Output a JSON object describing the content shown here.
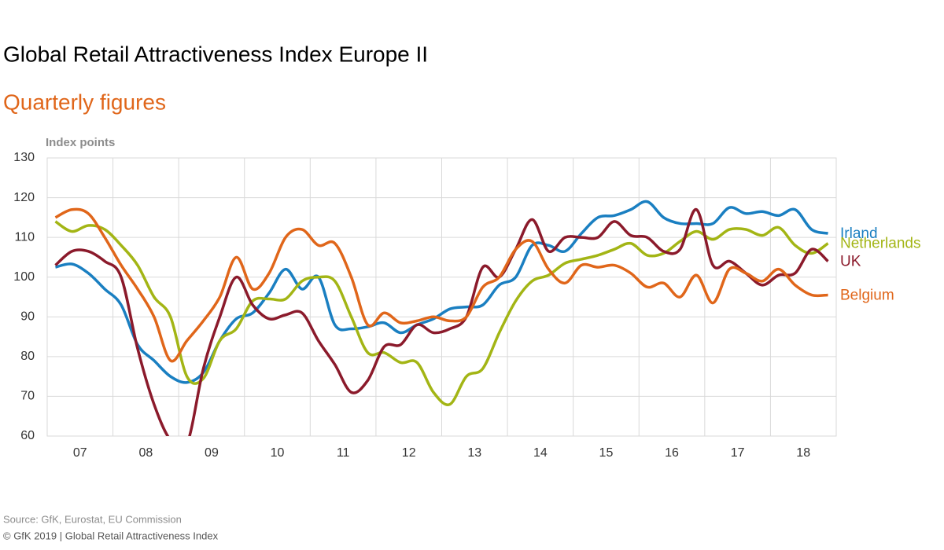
{
  "chart_data": {
    "type": "line",
    "title": "Global Retail Attractiveness Index Europe II",
    "subtitle": "Quarterly figures",
    "y_label": "Index points",
    "source": "Source: GfK, Eurostat, EU Commission",
    "copyright": "© GfK 2019 | Global Retail Attractiveness Index",
    "categories": [
      null,
      "07",
      null,
      null,
      null,
      "08",
      null,
      null,
      null,
      "09",
      null,
      null,
      null,
      "10",
      null,
      null,
      null,
      "11",
      null,
      null,
      null,
      "12",
      null,
      null,
      null,
      "13",
      null,
      null,
      null,
      "14",
      null,
      null,
      null,
      "15",
      null,
      null,
      null,
      "16",
      null,
      null,
      null,
      "17",
      null,
      null,
      null,
      "18",
      null,
      null
    ],
    "ylim": [
      60,
      130
    ],
    "yticks": [
      60,
      70,
      80,
      90,
      100,
      110,
      120,
      130
    ],
    "grid": true,
    "series": [
      {
        "name": "Irland",
        "color": "#1a7fc1",
        "values": [
          102.5,
          103.3,
          101,
          97,
          93,
          83,
          79,
          75,
          73.5,
          76,
          84,
          89.5,
          91,
          96,
          102,
          97,
          100,
          88,
          87,
          87.5,
          88.5,
          86,
          88,
          89.5,
          92,
          92.5,
          93,
          98,
          100,
          108,
          108,
          106.5,
          111,
          115,
          115.5,
          117,
          119,
          115,
          113.5,
          113.5,
          113.5,
          117.5,
          116,
          116.5,
          115.5,
          117,
          112,
          111
        ]
      },
      {
        "name": "Netherlands",
        "color": "#a3b515",
        "values": [
          114,
          111.5,
          113,
          112,
          108,
          103,
          95,
          90,
          75,
          74.5,
          84,
          87,
          94,
          94.5,
          94.5,
          99,
          100,
          99,
          90,
          81,
          81,
          78.5,
          78.5,
          71,
          68,
          75,
          77,
          86,
          94,
          99,
          100.5,
          103.5,
          104.5,
          105.5,
          107,
          108.5,
          105.5,
          106,
          109,
          111.5,
          109.5,
          112,
          112,
          110.5,
          112.5,
          108,
          106,
          108.5
        ]
      },
      {
        "name": "UK",
        "color": "#8b1a2b",
        "values": [
          103,
          106.5,
          106.5,
          104,
          100,
          82,
          68,
          59,
          58,
          77,
          90,
          100,
          93,
          89.5,
          90.5,
          91,
          84,
          78,
          71,
          74,
          82.5,
          83,
          88,
          86,
          87,
          90,
          102.5,
          100,
          107,
          114.5,
          106.5,
          110,
          110,
          110,
          114,
          110.5,
          110,
          106.5,
          107,
          117,
          103,
          104,
          101,
          98,
          100.5,
          101,
          107,
          104
        ]
      },
      {
        "name": "Belgium",
        "color": "#e0661a",
        "values": [
          115,
          117,
          116,
          110,
          103,
          97,
          90,
          79,
          84,
          89,
          95,
          105,
          97,
          101,
          110,
          112,
          108,
          108.5,
          100,
          88,
          91,
          88.5,
          89,
          90,
          89,
          90,
          97.5,
          100,
          107,
          109,
          102,
          98.5,
          103,
          102.5,
          103,
          101,
          97.5,
          98.5,
          95,
          100.5,
          93.5,
          102,
          101,
          99,
          102,
          98,
          95.5,
          95.5
        ]
      }
    ]
  }
}
